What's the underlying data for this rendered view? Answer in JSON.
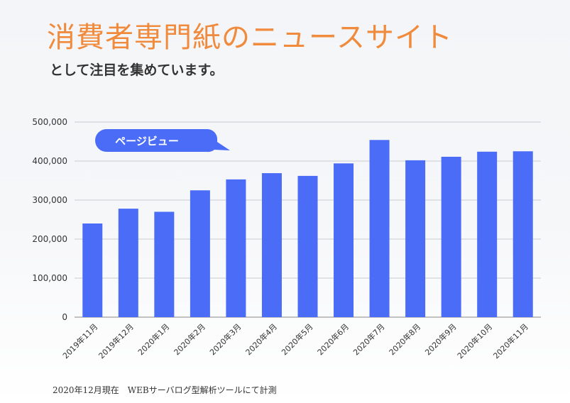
{
  "header": {
    "title": "消費者専門紙のニュースサイト",
    "subtitle": "として注目を集めています。"
  },
  "footnote": "2020年12月現在　WEBサーバログ型解析ツールにて計測",
  "colors": {
    "bar": "#4a6cf7",
    "title": "#f08a3c"
  },
  "chart_data": {
    "type": "bar",
    "title": "",
    "xlabel": "",
    "ylabel": "",
    "legend_label": "ページビュー",
    "categories": [
      "2019年11月",
      "2019年12月",
      "2020年1月",
      "2020年2月",
      "2020年3月",
      "2020年4月",
      "2020年5月",
      "2020年6月",
      "2020年7月",
      "2020年8月",
      "2020年9月",
      "2020年10月",
      "2020年11月"
    ],
    "values": [
      240000,
      278000,
      270000,
      325000,
      353000,
      369000,
      362000,
      394000,
      454000,
      402000,
      411000,
      424000,
      425000
    ],
    "ylim": [
      0,
      500000
    ],
    "yticks": [
      0,
      100000,
      200000,
      300000,
      400000,
      500000
    ],
    "ytick_labels": [
      "0",
      "100,000",
      "200,000",
      "300,000",
      "400,000",
      "500,000"
    ],
    "grid": true
  }
}
